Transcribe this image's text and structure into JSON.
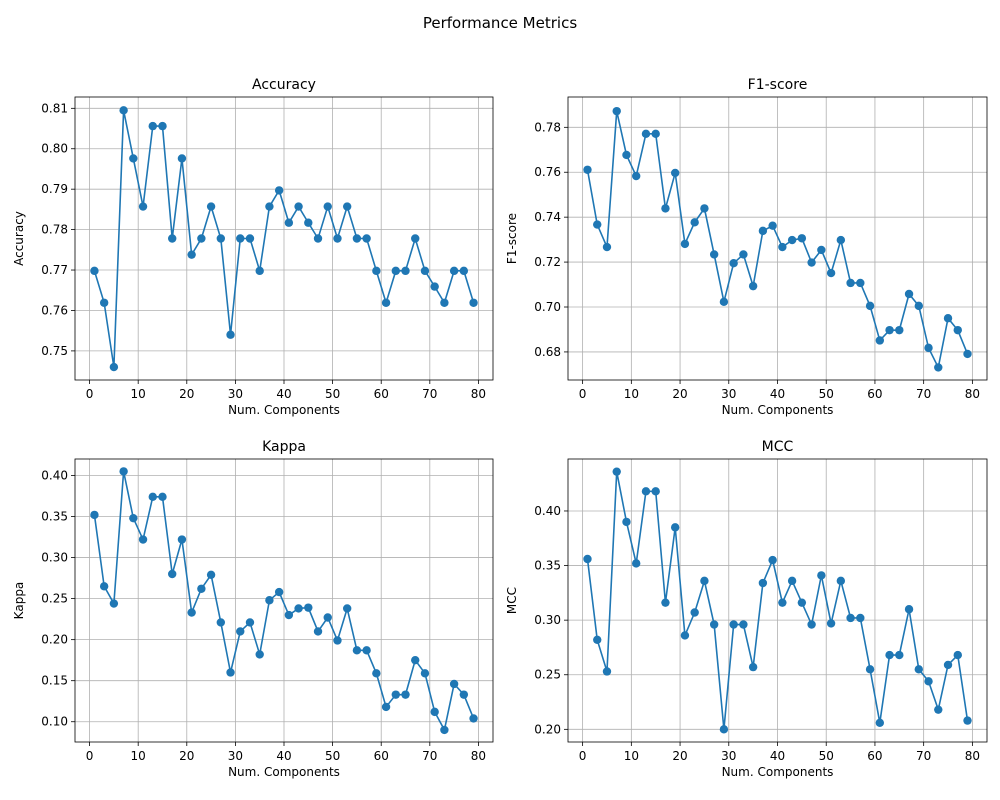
{
  "figure": {
    "suptitle": "Performance Metrics"
  },
  "style": {
    "line_color": "#1f77b4",
    "grid_color": "#b0b0b0",
    "axis_color": "#000000",
    "background": "#ffffff"
  },
  "chart_data": [
    {
      "type": "line",
      "title": "Accuracy",
      "xlabel": "Num. Components",
      "ylabel": "Accuracy",
      "grid": true,
      "marker": "circle",
      "xlim": [
        -3,
        83
      ],
      "ylim": [
        0.7428,
        0.8128
      ],
      "xticks": [
        0,
        10,
        20,
        30,
        40,
        50,
        60,
        70,
        80
      ],
      "yticks": [
        0.75,
        0.76,
        0.77,
        0.78,
        0.79,
        0.8,
        0.81
      ],
      "ytick_labels": [
        "0.75",
        "0.76",
        "0.77",
        "0.78",
        "0.79",
        "0.80",
        "0.81"
      ],
      "x": [
        1,
        3,
        5,
        7,
        9,
        11,
        13,
        15,
        17,
        19,
        21,
        23,
        25,
        27,
        29,
        31,
        33,
        35,
        37,
        39,
        41,
        43,
        45,
        47,
        49,
        51,
        53,
        55,
        57,
        59,
        61,
        63,
        65,
        67,
        69,
        71,
        73,
        75,
        77,
        79
      ],
      "series": [
        {
          "values": [
            0.7698,
            0.7619,
            0.746,
            0.8095,
            0.7976,
            0.7857,
            0.8056,
            0.8056,
            0.7778,
            0.7976,
            0.7738,
            0.7778,
            0.7857,
            0.7778,
            0.754,
            0.7778,
            0.7778,
            0.7698,
            0.7857,
            0.7897,
            0.7817,
            0.7857,
            0.7817,
            0.7778,
            0.7857,
            0.7778,
            0.7857,
            0.7778,
            0.7778,
            0.7698,
            0.7619,
            0.7698,
            0.7698,
            0.7778,
            0.7698,
            0.7659,
            0.7619,
            0.7698,
            0.7698,
            0.7619
          ]
        }
      ]
    },
    {
      "type": "line",
      "title": "F1-score",
      "xlabel": "Num. Components",
      "ylabel": "F1-score",
      "grid": true,
      "marker": "circle",
      "xlim": [
        -3,
        83
      ],
      "ylim": [
        0.6675,
        0.7935
      ],
      "xticks": [
        0,
        10,
        20,
        30,
        40,
        50,
        60,
        70,
        80
      ],
      "yticks": [
        0.68,
        0.7,
        0.72,
        0.74,
        0.76,
        0.78
      ],
      "ytick_labels": [
        "0.68",
        "0.70",
        "0.72",
        "0.74",
        "0.76",
        "0.78"
      ],
      "x": [
        1,
        3,
        5,
        7,
        9,
        11,
        13,
        15,
        17,
        19,
        21,
        23,
        25,
        27,
        29,
        31,
        33,
        35,
        37,
        39,
        41,
        43,
        45,
        47,
        49,
        51,
        53,
        55,
        57,
        59,
        61,
        63,
        65,
        67,
        69,
        71,
        73,
        75,
        77,
        79
      ],
      "series": [
        {
          "values": [
            0.7611,
            0.7367,
            0.7267,
            0.7872,
            0.7677,
            0.7583,
            0.7771,
            0.7771,
            0.7439,
            0.7597,
            0.7281,
            0.7377,
            0.7439,
            0.7234,
            0.7023,
            0.7195,
            0.7234,
            0.7093,
            0.7339,
            0.7362,
            0.7267,
            0.7298,
            0.7306,
            0.7198,
            0.7254,
            0.7151,
            0.7298,
            0.7107,
            0.7107,
            0.7005,
            0.6851,
            0.6897,
            0.6897,
            0.7058,
            0.7005,
            0.6818,
            0.6731,
            0.695,
            0.6897,
            0.6791
          ]
        }
      ]
    },
    {
      "type": "line",
      "title": "Kappa",
      "xlabel": "Num. Components",
      "ylabel": "Kappa",
      "grid": true,
      "marker": "circle",
      "xlim": [
        -3,
        83
      ],
      "ylim": [
        0.0753,
        0.4201
      ],
      "xticks": [
        0,
        10,
        20,
        30,
        40,
        50,
        60,
        70,
        80
      ],
      "yticks": [
        0.1,
        0.15,
        0.2,
        0.25,
        0.3,
        0.35,
        0.4
      ],
      "ytick_labels": [
        "0.10",
        "0.15",
        "0.20",
        "0.25",
        "0.30",
        "0.35",
        "0.40"
      ],
      "x": [
        1,
        3,
        5,
        7,
        9,
        11,
        13,
        15,
        17,
        19,
        21,
        23,
        25,
        27,
        29,
        31,
        33,
        35,
        37,
        39,
        41,
        43,
        45,
        47,
        49,
        51,
        53,
        55,
        57,
        59,
        61,
        63,
        65,
        67,
        69,
        71,
        73,
        75,
        77,
        79
      ],
      "series": [
        {
          "values": [
            0.352,
            0.265,
            0.244,
            0.405,
            0.348,
            0.322,
            0.374,
            0.374,
            0.28,
            0.322,
            0.233,
            0.262,
            0.279,
            0.221,
            0.16,
            0.21,
            0.221,
            0.182,
            0.248,
            0.258,
            0.23,
            0.238,
            0.239,
            0.21,
            0.227,
            0.199,
            0.238,
            0.187,
            0.187,
            0.159,
            0.118,
            0.133,
            0.133,
            0.175,
            0.159,
            0.112,
            0.09,
            0.146,
            0.133,
            0.104
          ]
        }
      ]
    },
    {
      "type": "line",
      "title": "MCC",
      "xlabel": "Num. Components",
      "ylabel": "MCC",
      "grid": true,
      "marker": "circle",
      "xlim": [
        -3,
        83
      ],
      "ylim": [
        0.1884,
        0.4476
      ],
      "xticks": [
        0,
        10,
        20,
        30,
        40,
        50,
        60,
        70,
        80
      ],
      "yticks": [
        0.2,
        0.25,
        0.3,
        0.35,
        0.4
      ],
      "ytick_labels": [
        "0.20",
        "0.25",
        "0.30",
        "0.35",
        "0.40"
      ],
      "x": [
        1,
        3,
        5,
        7,
        9,
        11,
        13,
        15,
        17,
        19,
        21,
        23,
        25,
        27,
        29,
        31,
        33,
        35,
        37,
        39,
        41,
        43,
        45,
        47,
        49,
        51,
        53,
        55,
        57,
        59,
        61,
        63,
        65,
        67,
        69,
        71,
        73,
        75,
        77,
        79
      ],
      "series": [
        {
          "values": [
            0.356,
            0.282,
            0.253,
            0.436,
            0.39,
            0.352,
            0.418,
            0.418,
            0.316,
            0.385,
            0.286,
            0.307,
            0.336,
            0.296,
            0.2,
            0.296,
            0.296,
            0.257,
            0.334,
            0.355,
            0.316,
            0.336,
            0.316,
            0.296,
            0.341,
            0.297,
            0.336,
            0.302,
            0.302,
            0.255,
            0.206,
            0.268,
            0.268,
            0.31,
            0.255,
            0.244,
            0.218,
            0.259,
            0.268,
            0.208
          ]
        }
      ]
    }
  ]
}
